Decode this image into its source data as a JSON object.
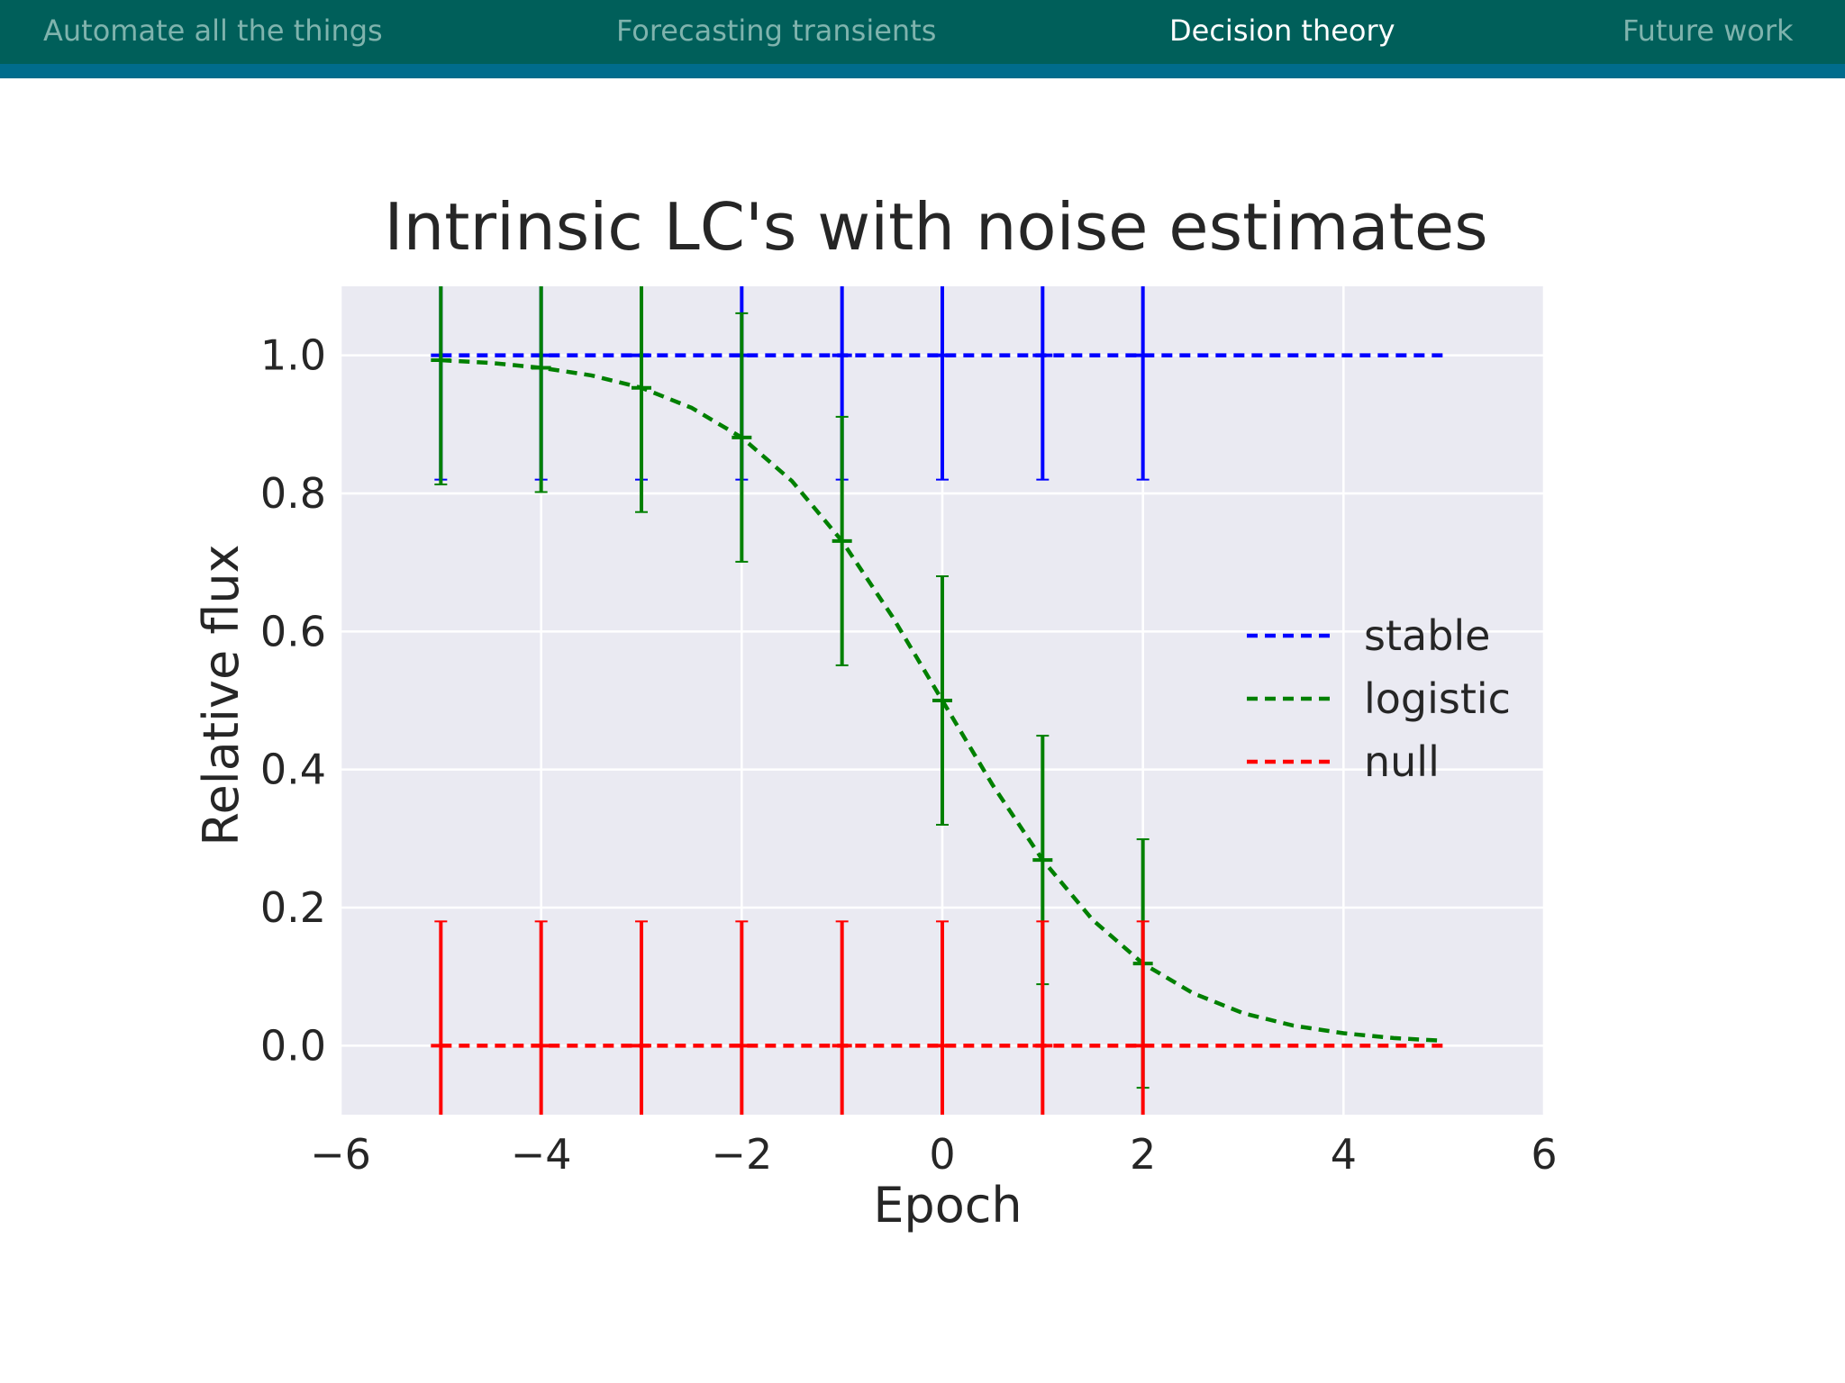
{
  "nav": {
    "items": [
      {
        "label": "Automate all the things",
        "active": false
      },
      {
        "label": "Forecasting transients",
        "active": false
      },
      {
        "label": "Decision theory",
        "active": true
      },
      {
        "label": "Future work",
        "active": false
      }
    ]
  },
  "colors": {
    "header_bg": "#005f5a",
    "header_strip": "#006c8c",
    "plot_bg": "#eaeaf2",
    "stable": "#0000ff",
    "logistic": "#008000",
    "null": "#ff0000"
  },
  "chart_data": {
    "type": "line",
    "title": "Intrinsic LC's with noise estimates",
    "xlabel": "Epoch",
    "ylabel": "Relative flux",
    "xlim": [
      -6,
      6
    ],
    "ylim": [
      -0.1,
      1.1
    ],
    "xticks": [
      -6,
      -4,
      -2,
      0,
      2,
      4,
      6
    ],
    "yticks": [
      0.0,
      0.2,
      0.4,
      0.6,
      0.8,
      1.0
    ],
    "xtick_labels": [
      "−6",
      "−4",
      "−2",
      "0",
      "2",
      "4",
      "6"
    ],
    "ytick_labels": [
      "0.0",
      "0.2",
      "0.4",
      "0.6",
      "0.8",
      "1.0"
    ],
    "grid": true,
    "legend_position": "right",
    "series": [
      {
        "name": "stable",
        "curve": {
          "x": [
            -5,
            5
          ],
          "y": [
            1.0,
            1.0
          ]
        },
        "points": {
          "x": [
            -5,
            -4,
            -3,
            -2,
            -1,
            0,
            1,
            2
          ],
          "y": [
            1.0,
            1.0,
            1.0,
            1.0,
            1.0,
            1.0,
            1.0,
            1.0
          ],
          "err": [
            0.18,
            0.18,
            0.18,
            0.18,
            0.18,
            0.18,
            0.18,
            0.18
          ]
        }
      },
      {
        "name": "logistic",
        "curve": {
          "x": [
            -5,
            -4.5,
            -4,
            -3.5,
            -3,
            -2.5,
            -2,
            -1.5,
            -1,
            -0.5,
            0,
            0.5,
            1,
            1.5,
            2,
            2.5,
            3,
            3.5,
            4,
            4.5,
            5
          ],
          "y": [
            0.993,
            0.989,
            0.982,
            0.971,
            0.953,
            0.924,
            0.881,
            0.818,
            0.731,
            0.622,
            0.5,
            0.378,
            0.269,
            0.182,
            0.119,
            0.076,
            0.047,
            0.029,
            0.018,
            0.011,
            0.007
          ]
        },
        "points": {
          "x": [
            -5,
            -4,
            -3,
            -2,
            -1,
            0,
            1,
            2
          ],
          "y": [
            0.993,
            0.982,
            0.953,
            0.881,
            0.731,
            0.5,
            0.269,
            0.119
          ],
          "err": [
            0.18,
            0.18,
            0.18,
            0.18,
            0.18,
            0.18,
            0.18,
            0.18
          ]
        }
      },
      {
        "name": "null",
        "curve": {
          "x": [
            -5,
            5
          ],
          "y": [
            0.0,
            0.0
          ]
        },
        "points": {
          "x": [
            -5,
            -4,
            -3,
            -2,
            -1,
            0,
            1,
            2
          ],
          "y": [
            0.0,
            0.0,
            0.0,
            0.0,
            0.0,
            0.0,
            0.0,
            0.0
          ],
          "err": [
            0.18,
            0.18,
            0.18,
            0.18,
            0.18,
            0.18,
            0.18,
            0.18
          ]
        }
      }
    ]
  }
}
